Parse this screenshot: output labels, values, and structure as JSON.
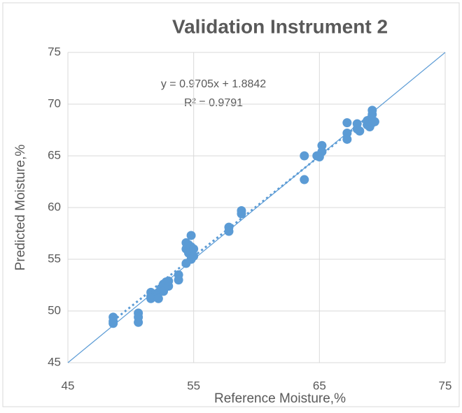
{
  "chart_data": {
    "type": "scatter",
    "title": "Validation Instrument 2",
    "x_label": "Reference Moisture,%",
    "y_label": "Predicted Moisture,%",
    "annotations": [
      "y = 0.9705x + 1.8842",
      "R² = 0.9791"
    ],
    "trendline": {
      "slope": 0.9705,
      "intercept": 1.8842
    },
    "identity_line": true,
    "grid": true,
    "xlim": [
      45,
      75
    ],
    "xticks": [
      45,
      55,
      65,
      75
    ],
    "ylim": [
      45,
      75
    ],
    "yticks": [
      45,
      50,
      55,
      60,
      65,
      70,
      75
    ],
    "series": [
      {
        "color": "#5b9bd5",
        "x": [
          48.6,
          48.6,
          48.6,
          50.6,
          50.6,
          50.6,
          51.6,
          51.6,
          51.6,
          52.2,
          52.2,
          52.4,
          52.6,
          52.6,
          52.8,
          53.0,
          53.0,
          53.8,
          53.8,
          54.4,
          54.4,
          54.4,
          54.6,
          54.6,
          54.8,
          54.8,
          54.8,
          54.8,
          55.0,
          55.0,
          57.8,
          57.8,
          58.8,
          58.8,
          63.8,
          63.8,
          64.8,
          65.0,
          65.2,
          65.2,
          67.2,
          67.2,
          67.2,
          68.0,
          68.0,
          68.2,
          68.8,
          68.8,
          69.0,
          69.2,
          69.2,
          69.2,
          69.4
        ],
        "values": [
          49.4,
          49.0,
          48.8,
          49.8,
          49.4,
          48.9,
          51.8,
          51.4,
          51.2,
          51.8,
          51.2,
          52.2,
          52.6,
          51.9,
          52.8,
          52.4,
          52.9,
          53.5,
          53.0,
          56.6,
          56.0,
          54.6,
          56.4,
          55.6,
          57.3,
          56.2,
          55.8,
          55.0,
          56.0,
          55.3,
          58.1,
          57.7,
          59.7,
          59.4,
          65.0,
          62.7,
          65.0,
          64.9,
          66.0,
          65.4,
          68.2,
          67.2,
          66.6,
          68.1,
          67.6,
          67.4,
          68.0,
          68.4,
          67.8,
          68.2,
          69.0,
          69.4,
          68.3
        ]
      }
    ]
  }
}
